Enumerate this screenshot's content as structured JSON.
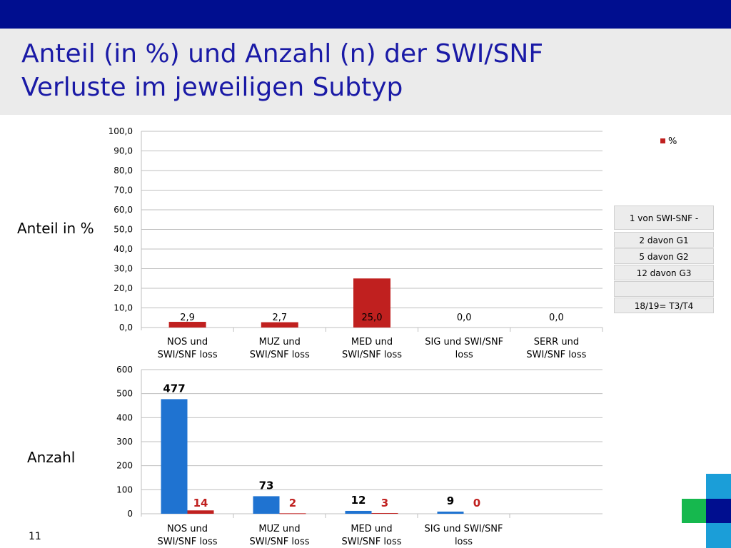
{
  "slide": {
    "title_line1": "Anteil (in %) und Anzahl (n) der SWI/SNF",
    "title_line2": "Verluste im jeweiligen Subtyp",
    "label_percent": "Anteil in %",
    "label_count": "Anzahl",
    "page_number": "11",
    "info_boxes": [
      "1 von SWI-SNF -",
      "2 davon G1",
      "5 davon G2",
      "12 davon G3",
      "",
      "18/19= T3/T4"
    ],
    "colors": {
      "top_bar": "#000e8f",
      "title_text": "#1a1aa6",
      "red": "#c0201f",
      "blue": "#1f73d1"
    }
  },
  "chart_data": [
    {
      "type": "bar",
      "categories": [
        "NOS und SWI/SNF loss",
        "MUZ und SWI/SNF loss",
        "MED und SWI/SNF loss",
        "SIG und SWI/SNF loss",
        "SERR und SWI/SNF loss"
      ],
      "series": [
        {
          "name": "%",
          "values": [
            2.9,
            2.7,
            25.0,
            0.0,
            0.0
          ],
          "labels": [
            "2,9",
            "2,7",
            "25,0",
            "0,0",
            "0,0"
          ]
        }
      ],
      "ylim": [
        0,
        100
      ],
      "yticks": [
        "0,0",
        "10,0",
        "20,0",
        "30,0",
        "40,0",
        "50,0",
        "60,0",
        "70,0",
        "80,0",
        "90,0",
        "100,0"
      ],
      "legend": "top-right",
      "grid": true
    },
    {
      "type": "bar",
      "categories": [
        "NOS und SWI/SNF loss",
        "MUZ und SWI/SNF loss",
        "MED und SWI/SNF loss",
        "SIG und SWI/SNF loss"
      ],
      "series": [
        {
          "values": [
            477,
            73,
            12,
            9
          ]
        },
        {
          "values": [
            14,
            2,
            3,
            0
          ]
        }
      ],
      "ylim": [
        0,
        600
      ],
      "yticks": [
        "0",
        "100",
        "200",
        "300",
        "400",
        "500",
        "600"
      ],
      "grid": true
    }
  ]
}
